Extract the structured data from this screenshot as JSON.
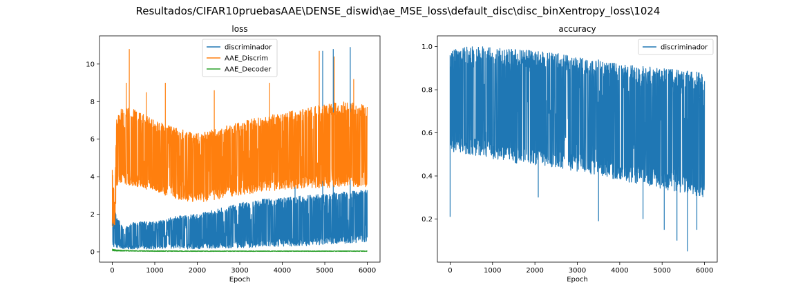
{
  "figure": {
    "suptitle": "Resultados/CIFAR10pruebasAAE\\DENSE_diswid\\ae_MSE_loss\\default_disc\\disc_binXentropy_loss\\1024"
  },
  "chart_data": [
    {
      "type": "line",
      "title": "loss",
      "xlabel": "Epoch",
      "ylabel": "",
      "xlim": [
        -300,
        6300
      ],
      "ylim": [
        -0.55,
        11.5
      ],
      "xticks": [
        0,
        1000,
        2000,
        3000,
        4000,
        5000,
        6000
      ],
      "yticks": [
        0,
        2,
        4,
        6,
        8,
        10
      ],
      "legend_position": "top-center",
      "series": [
        {
          "name": "discriminador",
          "color": "#1f77b4",
          "x": [
            0,
            250,
            500,
            1000,
            1500,
            2000,
            2500,
            3000,
            3500,
            4000,
            4500,
            5000,
            5500,
            6000
          ],
          "low": [
            0.25,
            0.15,
            0.15,
            0.15,
            0.15,
            0.15,
            0.2,
            0.2,
            0.25,
            0.3,
            0.3,
            0.4,
            0.45,
            0.5
          ],
          "high": [
            2.5,
            1.3,
            1.6,
            1.6,
            1.9,
            2.0,
            2.3,
            2.6,
            2.8,
            2.9,
            3.0,
            3.1,
            3.2,
            3.3
          ],
          "spikes": [
            [
              5200,
              10.8
            ],
            [
              5600,
              10.9
            ],
            [
              4950,
              10.7
            ],
            [
              4300,
              4.4
            ]
          ]
        },
        {
          "name": "AAE_Discrim",
          "color": "#ff7f0e",
          "x": [
            0,
            60,
            100,
            250,
            500,
            1000,
            1500,
            2000,
            2500,
            3000,
            3500,
            4000,
            4500,
            5000,
            5500,
            6000
          ],
          "low": [
            1.2,
            1.4,
            3.5,
            3.6,
            3.5,
            3.2,
            2.8,
            2.6,
            2.8,
            3.0,
            3.2,
            3.3,
            3.4,
            3.4,
            3.5,
            3.4
          ],
          "high": [
            4.6,
            2.5,
            7.2,
            7.8,
            7.6,
            7.0,
            6.6,
            6.3,
            6.6,
            6.9,
            7.2,
            7.4,
            7.6,
            7.9,
            8.0,
            7.8
          ],
          "spikes": [
            [
              400,
              10.8
            ],
            [
              330,
              9.0
            ],
            [
              800,
              8.5
            ],
            [
              1250,
              9.0
            ],
            [
              2400,
              8.6
            ],
            [
              3700,
              9.0
            ],
            [
              4870,
              10.7
            ],
            [
              5220,
              10.4
            ],
            [
              5680,
              9.2
            ]
          ]
        },
        {
          "name": "AAE_Decoder",
          "color": "#2ca02c",
          "x": [
            0,
            100,
            500,
            1000,
            2000,
            3000,
            4000,
            5000,
            6000
          ],
          "low": [
            0.05,
            0.04,
            0.03,
            0.02,
            0.02,
            0.02,
            0.02,
            0.02,
            0.02
          ],
          "high": [
            0.15,
            0.1,
            0.07,
            0.06,
            0.05,
            0.05,
            0.05,
            0.05,
            0.05
          ]
        }
      ]
    },
    {
      "type": "line",
      "title": "accuracy",
      "xlabel": "Epoch",
      "ylabel": "",
      "xlim": [
        -300,
        6300
      ],
      "ylim": [
        0.0,
        1.05
      ],
      "xticks": [
        0,
        1000,
        2000,
        3000,
        4000,
        5000,
        6000
      ],
      "yticks": [
        0.2,
        0.4,
        0.6,
        0.8,
        1.0
      ],
      "legend_position": "top-right",
      "series": [
        {
          "name": "discriminador",
          "color": "#1f77b4",
          "x": [
            0,
            100,
            500,
            1000,
            1500,
            2000,
            2500,
            3000,
            3500,
            4000,
            4500,
            5000,
            5500,
            6000
          ],
          "low": [
            0.5,
            0.5,
            0.5,
            0.48,
            0.46,
            0.45,
            0.44,
            0.42,
            0.4,
            0.38,
            0.36,
            0.34,
            0.32,
            0.3
          ],
          "high": [
            0.96,
            1.0,
            1.0,
            1.0,
            0.99,
            0.98,
            0.97,
            0.95,
            0.94,
            0.92,
            0.91,
            0.9,
            0.89,
            0.88
          ],
          "dips": [
            [
              0,
              0.21
            ],
            [
              2080,
              0.3
            ],
            [
              3500,
              0.19
            ],
            [
              4550,
              0.2
            ],
            [
              5050,
              0.15
            ],
            [
              5350,
              0.1
            ],
            [
              5600,
              0.05
            ],
            [
              5820,
              0.15
            ]
          ]
        }
      ]
    }
  ]
}
